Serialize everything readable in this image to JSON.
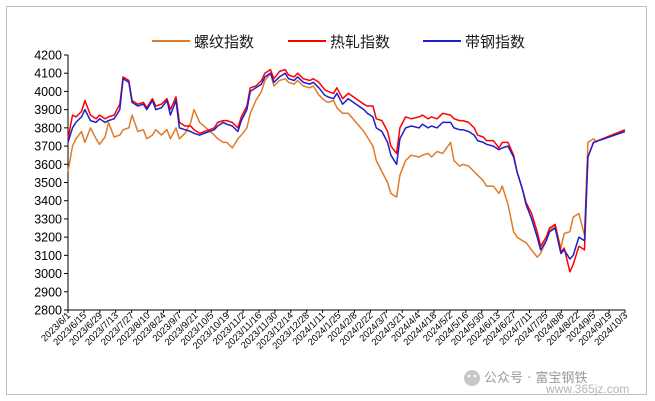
{
  "chart_data": {
    "type": "line",
    "title": "",
    "xlabel": "",
    "ylabel": "",
    "ylim": [
      2800,
      4200
    ],
    "yticks": [
      2800,
      2900,
      3000,
      3100,
      3200,
      3300,
      3400,
      3500,
      3600,
      3700,
      3800,
      3900,
      4000,
      4100,
      4200
    ],
    "xtick_labels": [
      "2023/6/1",
      "2023/6/15",
      "2023/6/29",
      "2023/7/13",
      "2023/7/27",
      "2023/8/10",
      "2023/8/24",
      "2023/9/7",
      "2023/9/21",
      "2023/10/5",
      "2023/10/19",
      "2023/11/2",
      "2023/11/16",
      "2023/11/30",
      "2023/12/14",
      "2023/12/28",
      "2024/1/11",
      "2024/1/25",
      "2024/2/8",
      "2024/2/22",
      "2024/3/7",
      "2024/3/21",
      "2024/4/4",
      "2024/4/18",
      "2024/5/2",
      "2024/5/16",
      "2024/5/30",
      "2024/6/13",
      "2024/6/27",
      "2024/7/11",
      "2024/7/25",
      "2024/8/8",
      "2024/8/22",
      "2024/9/5",
      "2024/9/19",
      "2024/10/3"
    ],
    "legend_position": "top",
    "grid": false,
    "series": [
      {
        "name": "螺纹指数",
        "color": "#e07b2a",
        "values": [
          3560,
          3700,
          3740,
          3780,
          3720,
          3800,
          3740,
          3710,
          3750,
          3830,
          3750,
          3760,
          3790,
          3800,
          3870,
          3780,
          3790,
          3740,
          3760,
          3790,
          3760,
          3790,
          3740,
          3800,
          3740,
          3770,
          3830,
          3900,
          3830,
          3760,
          3740,
          3720,
          3720,
          3690,
          3740,
          3760,
          3800,
          3880,
          3950,
          4000,
          4060,
          4100,
          4030,
          4060,
          4070,
          4050,
          4040,
          4060,
          4030,
          4020,
          4030,
          3980,
          3950,
          3940,
          3950,
          3910,
          3880,
          3880,
          3780,
          3750,
          3700,
          3620,
          3560,
          3500,
          3440,
          3420,
          3540,
          3620,
          3650,
          3640,
          3650,
          3660,
          3640,
          3670,
          3660,
          3720,
          3620,
          3590,
          3600,
          3590,
          3560,
          3540,
          3510,
          3480,
          3480,
          3440,
          3480,
          3380,
          3230,
          3200,
          3180,
          3170,
          3130,
          3090,
          3110,
          3180,
          3240,
          3260,
          3140,
          3220,
          3230,
          3310,
          3330,
          3210,
          3720,
          3740,
          3720
        ],
        "dates": [
          "2023-06-01",
          "2023-06-05",
          "2023-06-08",
          "2023-06-13",
          "2023-06-16",
          "2023-06-21",
          "2023-06-26",
          "2023-06-29",
          "2023-07-04",
          "2023-07-07",
          "2023-07-12",
          "2023-07-17",
          "2023-07-20",
          "2023-07-25",
          "2023-07-28",
          "2023-08-02",
          "2023-08-07",
          "2023-08-10",
          "2023-08-15",
          "2023-08-18",
          "2023-08-23",
          "2023-08-28",
          "2023-08-31",
          "2023-09-05",
          "2023-09-08",
          "2023-09-13",
          "2023-09-18",
          "2023-09-21",
          "2023-09-26",
          "2023-10-09",
          "2023-10-12",
          "2023-10-17",
          "2023-10-20",
          "2023-10-25",
          "2023-10-30",
          "2023-11-02",
          "2023-11-07",
          "2023-11-10",
          "2023-11-15",
          "2023-11-20",
          "2023-11-23",
          "2023-11-28",
          "2023-12-01",
          "2023-12-06",
          "2023-12-11",
          "2023-12-14",
          "2023-12-19",
          "2023-12-22",
          "2023-12-27",
          "2024-01-02",
          "2024-01-05",
          "2024-01-10",
          "2024-01-15",
          "2024-01-18",
          "2024-01-23",
          "2024-01-26",
          "2024-01-31",
          "2024-02-05",
          "2024-02-19",
          "2024-02-22",
          "2024-02-27",
          "2024-03-01",
          "2024-03-06",
          "2024-03-11",
          "2024-03-14",
          "2024-03-19",
          "2024-03-22",
          "2024-03-27",
          "2024-04-01",
          "2024-04-08",
          "2024-04-11",
          "2024-04-16",
          "2024-04-19",
          "2024-04-24",
          "2024-04-29",
          "2024-05-06",
          "2024-05-09",
          "2024-05-14",
          "2024-05-17",
          "2024-05-22",
          "2024-05-27",
          "2024-05-30",
          "2024-06-04",
          "2024-06-07",
          "2024-06-13",
          "2024-06-18",
          "2024-06-21",
          "2024-06-26",
          "2024-07-01",
          "2024-07-04",
          "2024-07-09",
          "2024-07-12",
          "2024-07-17",
          "2024-07-22",
          "2024-07-25",
          "2024-07-30",
          "2024-08-02",
          "2024-08-07",
          "2024-08-12",
          "2024-08-15",
          "2024-08-20",
          "2024-08-23",
          "2024-08-28",
          "2024-09-02",
          "2024-09-05",
          "2024-09-10",
          "2024-09-13"
        ]
      },
      {
        "name": "热轧指数",
        "color": "#ff0000",
        "values": [
          3740,
          3870,
          3860,
          3890,
          3950,
          3870,
          3850,
          3870,
          3850,
          3860,
          3870,
          3930,
          4080,
          4060,
          3950,
          3930,
          3940,
          3910,
          3960,
          3920,
          3930,
          3960,
          3900,
          3970,
          3830,
          3810,
          3810,
          3790,
          3770,
          3800,
          3830,
          3840,
          3840,
          3830,
          3800,
          3860,
          3920,
          4020,
          4030,
          4060,
          4100,
          4120,
          4070,
          4110,
          4120,
          4090,
          4080,
          4100,
          4070,
          4060,
          4070,
          4050,
          4010,
          4000,
          3990,
          4020,
          3960,
          3990,
          3930,
          3920,
          3920,
          3850,
          3840,
          3780,
          3700,
          3660,
          3800,
          3860,
          3850,
          3860,
          3870,
          3850,
          3860,
          3850,
          3880,
          3870,
          3850,
          3840,
          3840,
          3830,
          3800,
          3760,
          3750,
          3730,
          3730,
          3690,
          3720,
          3720,
          3650,
          3560,
          3460,
          3390,
          3330,
          3230,
          3150,
          3200,
          3250,
          3270,
          3120,
          3140,
          3010,
          3050,
          3150,
          3130,
          3640,
          3720,
          3790
        ],
        "dates": [
          "2023-06-01",
          "2023-06-05",
          "2023-06-08",
          "2023-06-13",
          "2023-06-16",
          "2023-06-21",
          "2023-06-26",
          "2023-06-29",
          "2023-07-04",
          "2023-07-07",
          "2023-07-12",
          "2023-07-17",
          "2023-07-20",
          "2023-07-25",
          "2023-07-28",
          "2023-08-02",
          "2023-08-07",
          "2023-08-10",
          "2023-08-15",
          "2023-08-18",
          "2023-08-23",
          "2023-08-28",
          "2023-08-31",
          "2023-09-05",
          "2023-09-08",
          "2023-09-13",
          "2023-09-18",
          "2023-09-21",
          "2023-09-26",
          "2023-10-09",
          "2023-10-12",
          "2023-10-17",
          "2023-10-20",
          "2023-10-25",
          "2023-10-30",
          "2023-11-02",
          "2023-11-07",
          "2023-11-10",
          "2023-11-15",
          "2023-11-20",
          "2023-11-23",
          "2023-11-28",
          "2023-12-01",
          "2023-12-06",
          "2023-12-11",
          "2023-12-14",
          "2023-12-19",
          "2023-12-22",
          "2023-12-27",
          "2024-01-02",
          "2024-01-05",
          "2024-01-10",
          "2024-01-15",
          "2024-01-18",
          "2024-01-23",
          "2024-01-26",
          "2024-01-31",
          "2024-02-05",
          "2024-02-19",
          "2024-02-22",
          "2024-02-27",
          "2024-03-01",
          "2024-03-06",
          "2024-03-11",
          "2024-03-14",
          "2024-03-19",
          "2024-03-22",
          "2024-03-27",
          "2024-04-01",
          "2024-04-08",
          "2024-04-11",
          "2024-04-16",
          "2024-04-19",
          "2024-04-24",
          "2024-04-29",
          "2024-05-06",
          "2024-05-09",
          "2024-05-14",
          "2024-05-17",
          "2024-05-22",
          "2024-05-27",
          "2024-05-30",
          "2024-06-04",
          "2024-06-07",
          "2024-06-13",
          "2024-06-18",
          "2024-06-21",
          "2024-06-26",
          "2024-07-01",
          "2024-07-04",
          "2024-07-09",
          "2024-07-12",
          "2024-07-17",
          "2024-07-22",
          "2024-07-25",
          "2024-07-30",
          "2024-08-02",
          "2024-08-07",
          "2024-08-12",
          "2024-08-15",
          "2024-08-20",
          "2024-08-23",
          "2024-08-28",
          "2024-09-02",
          "2024-09-05",
          "2024-09-10",
          "2024-10-08"
        ]
      },
      {
        "name": "带钢指数",
        "color": "#1f1fc8",
        "values": [
          3720,
          3800,
          3830,
          3860,
          3900,
          3840,
          3830,
          3850,
          3830,
          3840,
          3850,
          3900,
          4070,
          4050,
          3940,
          3920,
          3930,
          3900,
          3950,
          3900,
          3910,
          3950,
          3870,
          3950,
          3800,
          3790,
          3780,
          3770,
          3760,
          3790,
          3810,
          3830,
          3820,
          3810,
          3780,
          3840,
          3900,
          4000,
          4020,
          4040,
          4080,
          4100,
          4050,
          4080,
          4100,
          4070,
          4060,
          4080,
          4050,
          4040,
          4050,
          4020,
          3980,
          3970,
          3960,
          3990,
          3930,
          3960,
          3900,
          3880,
          3860,
          3800,
          3780,
          3720,
          3650,
          3600,
          3740,
          3800,
          3810,
          3800,
          3820,
          3800,
          3810,
          3800,
          3830,
          3830,
          3800,
          3790,
          3790,
          3780,
          3760,
          3730,
          3720,
          3710,
          3700,
          3680,
          3690,
          3700,
          3640,
          3560,
          3460,
          3380,
          3300,
          3200,
          3130,
          3180,
          3230,
          3250,
          3110,
          3130,
          3080,
          3100,
          3200,
          3180,
          3640,
          3720,
          3780
        ],
        "dates": [
          "2023-06-01",
          "2023-06-05",
          "2023-06-08",
          "2023-06-13",
          "2023-06-16",
          "2023-06-21",
          "2023-06-26",
          "2023-06-29",
          "2023-07-04",
          "2023-07-07",
          "2023-07-12",
          "2023-07-17",
          "2023-07-20",
          "2023-07-25",
          "2023-07-28",
          "2023-08-02",
          "2023-08-07",
          "2023-08-10",
          "2023-08-15",
          "2023-08-18",
          "2023-08-23",
          "2023-08-28",
          "2023-08-31",
          "2023-09-05",
          "2023-09-08",
          "2023-09-13",
          "2023-09-18",
          "2023-09-21",
          "2023-09-26",
          "2023-10-09",
          "2023-10-12",
          "2023-10-17",
          "2023-10-20",
          "2023-10-25",
          "2023-10-30",
          "2023-11-02",
          "2023-11-07",
          "2023-11-10",
          "2023-11-15",
          "2023-11-20",
          "2023-11-23",
          "2023-11-28",
          "2023-12-01",
          "2023-12-06",
          "2023-12-11",
          "2023-12-14",
          "2023-12-19",
          "2023-12-22",
          "2023-12-27",
          "2024-01-02",
          "2024-01-05",
          "2024-01-10",
          "2024-01-15",
          "2024-01-18",
          "2024-01-23",
          "2024-01-26",
          "2024-01-31",
          "2024-02-05",
          "2024-02-19",
          "2024-02-22",
          "2024-02-27",
          "2024-03-01",
          "2024-03-06",
          "2024-03-11",
          "2024-03-14",
          "2024-03-19",
          "2024-03-22",
          "2024-03-27",
          "2024-04-01",
          "2024-04-08",
          "2024-04-11",
          "2024-04-16",
          "2024-04-19",
          "2024-04-24",
          "2024-04-29",
          "2024-05-06",
          "2024-05-09",
          "2024-05-14",
          "2024-05-17",
          "2024-05-22",
          "2024-05-27",
          "2024-05-30",
          "2024-06-04",
          "2024-06-07",
          "2024-06-13",
          "2024-06-18",
          "2024-06-21",
          "2024-06-26",
          "2024-07-01",
          "2024-07-04",
          "2024-07-09",
          "2024-07-12",
          "2024-07-17",
          "2024-07-22",
          "2024-07-25",
          "2024-07-30",
          "2024-08-02",
          "2024-08-07",
          "2024-08-12",
          "2024-08-15",
          "2024-08-20",
          "2024-08-23",
          "2024-08-28",
          "2024-09-02",
          "2024-09-05",
          "2024-09-10",
          "2024-10-08"
        ]
      }
    ]
  },
  "watermark": {
    "account": "公众号 · 富宝钢铁",
    "site": "www.365jz.com"
  }
}
